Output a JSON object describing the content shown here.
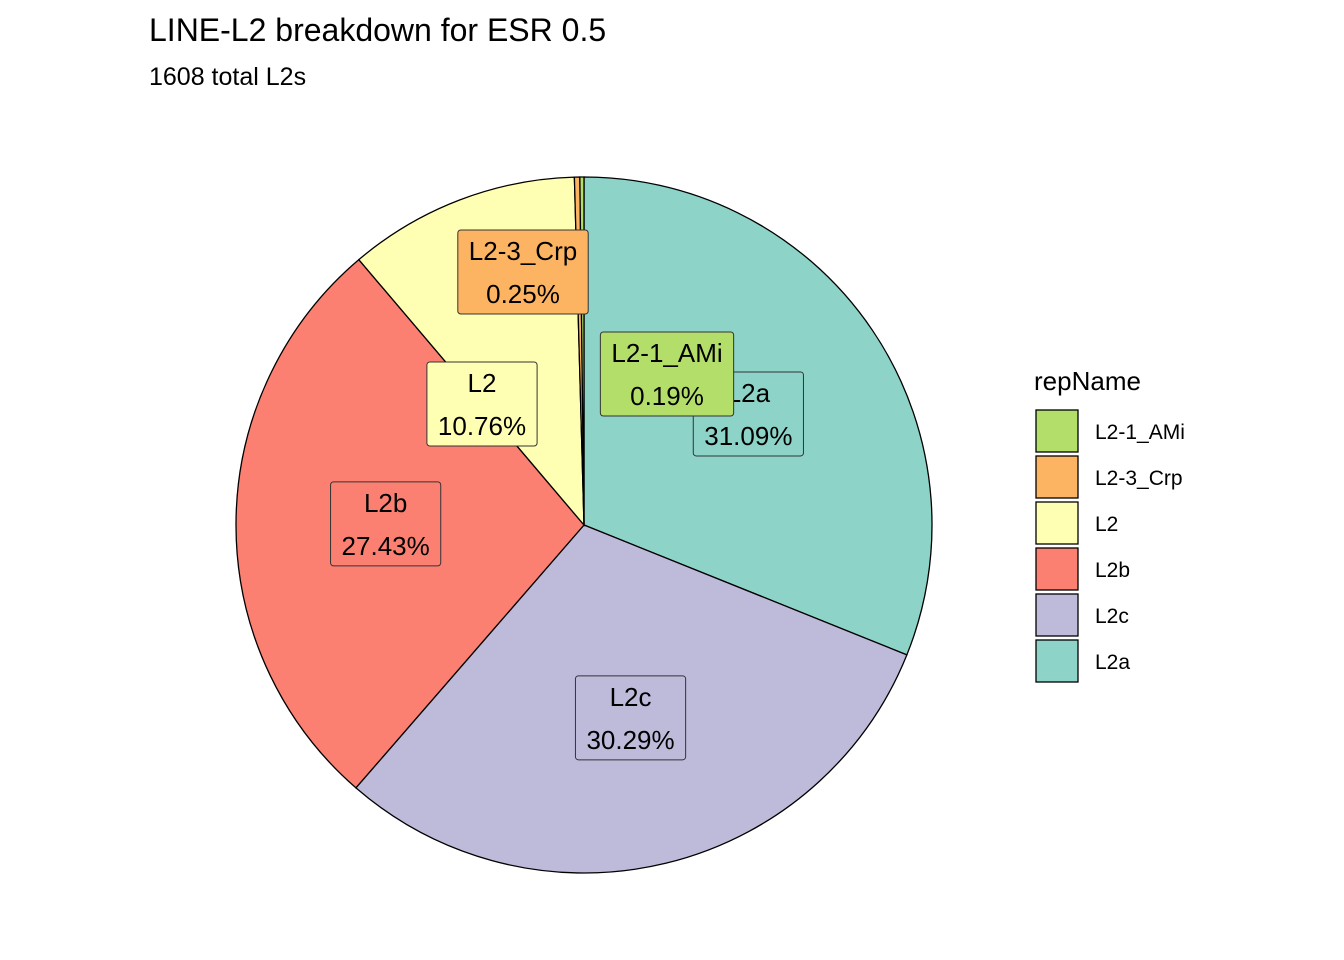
{
  "chart_data": {
    "type": "pie",
    "title": "LINE-L2 breakdown for ESR 0.5",
    "subtitle": "1608  total L2s",
    "legend_title": "repName",
    "legend_position": "right",
    "slices": [
      {
        "name": "L2a",
        "value": 31.09,
        "label": "31.09%",
        "color": "#8DD3C7"
      },
      {
        "name": "L2c",
        "value": 30.29,
        "label": "30.29%",
        "color": "#BEBADA"
      },
      {
        "name": "L2b",
        "value": 27.43,
        "label": "27.43%",
        "color": "#FB8072"
      },
      {
        "name": "L2",
        "value": 10.76,
        "label": "10.76%",
        "color": "#FFFFB3"
      },
      {
        "name": "L2-3_Crp",
        "value": 0.25,
        "label": "0.25%",
        "color": "#FDB462"
      },
      {
        "name": "L2-1_AMi",
        "value": 0.19,
        "label": "0.19%",
        "color": "#B3DE69"
      }
    ],
    "legend_order": [
      "L2-1_AMi",
      "L2-3_Crp",
      "L2",
      "L2b",
      "L2c",
      "L2a"
    ]
  }
}
